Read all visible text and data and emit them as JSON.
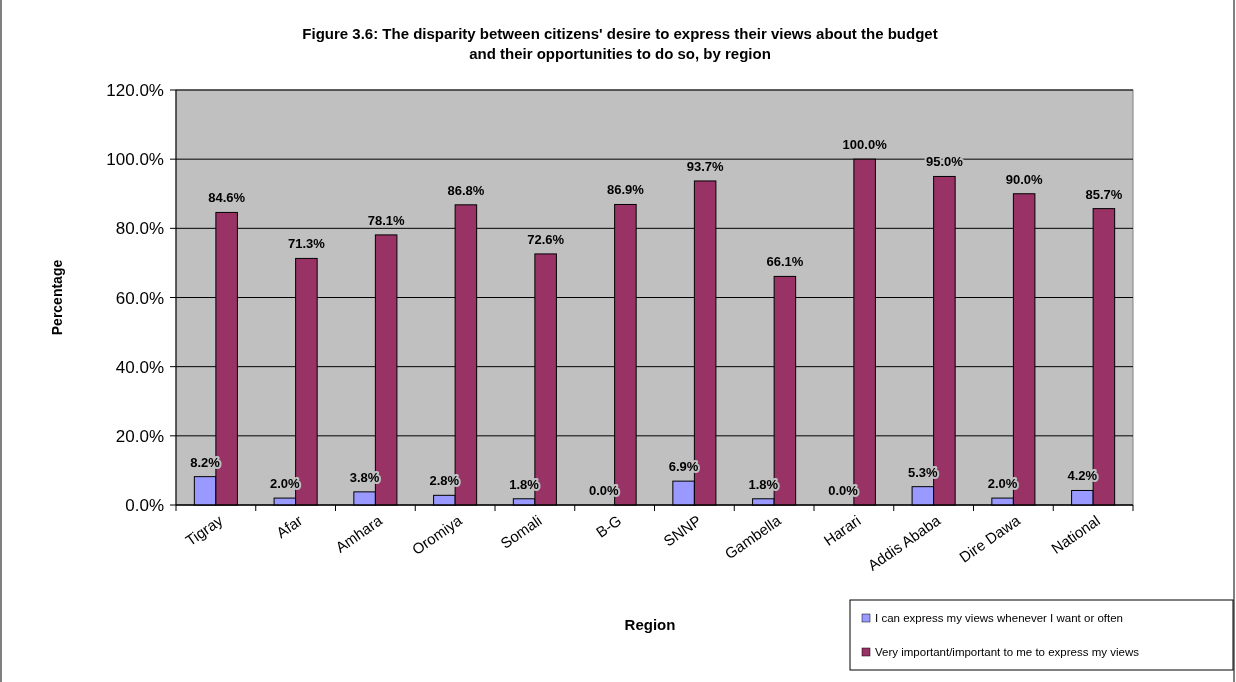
{
  "chart_data": {
    "type": "bar",
    "title": "Figure 3.6: The disparity between citizens' desire to express their views about the budget and their opportunities to do so, by region",
    "xlabel": "Region",
    "ylabel": "Percentage",
    "categories": [
      "Tigray",
      "Afar",
      "Amhara",
      "Oromiya",
      "Somali",
      "B-G",
      "SNNP",
      "Gambella",
      "Harari",
      "Addis Ababa",
      "Dire Dawa",
      "National"
    ],
    "series": [
      {
        "name": "I can express my views whenever I want or often",
        "color": "#9999ff",
        "values": [
          8.2,
          2.0,
          3.8,
          2.8,
          1.8,
          0.0,
          6.9,
          1.8,
          0.0,
          5.3,
          2.0,
          4.2
        ],
        "value_labels": [
          "8.2%",
          "2.0%",
          "3.8%",
          "2.8%",
          "1.8%",
          "0.0%",
          "6.9%",
          "1.8%",
          "0.0%",
          "5.3%",
          "2.0%",
          "4.2%"
        ]
      },
      {
        "name": "Very important/important to me to express my views",
        "color": "#993366",
        "values": [
          84.6,
          71.3,
          78.1,
          86.8,
          72.6,
          86.9,
          93.7,
          66.1,
          100.0,
          95.0,
          90.0,
          85.7
        ],
        "value_labels": [
          "84.6%",
          "71.3%",
          "78.1%",
          "86.8%",
          "72.6%",
          "86.9%",
          "93.7%",
          "66.1%",
          "100.0%",
          "95.0%",
          "90.0%",
          "85.7%"
        ]
      }
    ],
    "ylim": [
      0,
      120
    ],
    "yticks": [
      {
        "value": 0,
        "label": "0.0%"
      },
      {
        "value": 20,
        "label": "20.0%"
      },
      {
        "value": 40,
        "label": "40.0%"
      },
      {
        "value": 60,
        "label": "60.0%"
      },
      {
        "value": 80,
        "label": "80.0%"
      },
      {
        "value": 100,
        "label": "100.0%"
      },
      {
        "value": 120,
        "label": "120.0%"
      }
    ],
    "grid": "y",
    "legend": "bottom right"
  }
}
